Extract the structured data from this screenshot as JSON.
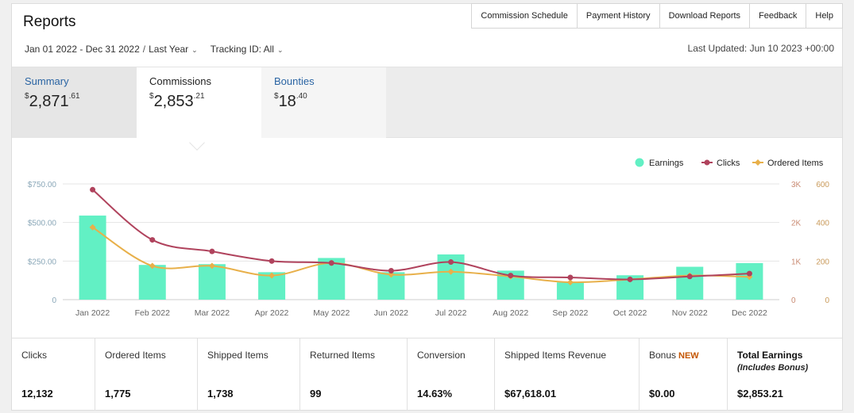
{
  "header": {
    "title": "Reports",
    "nav": [
      "Commission Schedule",
      "Payment History",
      "Download Reports",
      "Feedback",
      "Help"
    ]
  },
  "filters": {
    "date_range": "Jan 01 2022 - Dec 31 2022",
    "separator": "/",
    "period": "Last Year",
    "tracking_label": "Tracking ID: All"
  },
  "last_updated": "Last Updated: Jun 10 2023 +00:00",
  "tabs": {
    "summary": {
      "label": "Summary",
      "dollar": "$",
      "whole": "2,871",
      "cents": ".61"
    },
    "commissions": {
      "label": "Commissions",
      "dollar": "$",
      "whole": "2,853",
      "cents": ".21"
    },
    "bounties": {
      "label": "Bounties",
      "dollar": "$",
      "whole": "18",
      "cents": ".40"
    }
  },
  "chart_data": {
    "type": "bar+line",
    "categories": [
      "Jan 2022",
      "Feb 2022",
      "Mar 2022",
      "Apr 2022",
      "May 2022",
      "Jun 2022",
      "Jul 2022",
      "Aug 2022",
      "Sep 2022",
      "Oct 2022",
      "Nov 2022",
      "Dec 2022"
    ],
    "series": [
      {
        "name": "Earnings",
        "type": "bar",
        "axis": "left",
        "color": "#62f0c4",
        "values": [
          545,
          225,
          230,
          178,
          270,
          178,
          293,
          188,
          112,
          158,
          213,
          237
        ]
      },
      {
        "name": "Clicks",
        "type": "line",
        "axis": "right1",
        "color": "#b0435d",
        "values": [
          2850,
          1550,
          1250,
          1000,
          950,
          750,
          975,
          625,
          575,
          525,
          600,
          675
        ]
      },
      {
        "name": "Ordered Items",
        "type": "line",
        "axis": "right2",
        "color": "#e8b04a",
        "values": [
          375,
          175,
          175,
          125,
          190,
          130,
          145,
          120,
          90,
          105,
          125,
          118
        ]
      }
    ],
    "y_left": {
      "ticks": [
        "0",
        "$250.00",
        "$500.00",
        "$750.00"
      ],
      "range": [
        0,
        750
      ]
    },
    "y_right1": {
      "ticks": [
        "0",
        "1K",
        "2K",
        "3K"
      ],
      "range": [
        0,
        3000
      ]
    },
    "y_right2": {
      "ticks": [
        "0",
        "200",
        "400",
        "600"
      ],
      "range": [
        0,
        600
      ]
    },
    "legend_position": "top-right",
    "grid": true
  },
  "stats": [
    {
      "label": "Clicks",
      "value": "12,132"
    },
    {
      "label": "Ordered Items",
      "value": "1,775"
    },
    {
      "label": "Shipped Items",
      "value": "1,738"
    },
    {
      "label": "Returned Items",
      "value": "99"
    },
    {
      "label": "Conversion",
      "value": "14.63%"
    },
    {
      "label": "Shipped Items Revenue",
      "value": "$67,618.01"
    },
    {
      "label": "Bonus",
      "badge": "NEW",
      "value": "$0.00"
    },
    {
      "label": "Total Earnings",
      "sub": "(Includes Bonus)",
      "value": "$2,853.21"
    }
  ]
}
